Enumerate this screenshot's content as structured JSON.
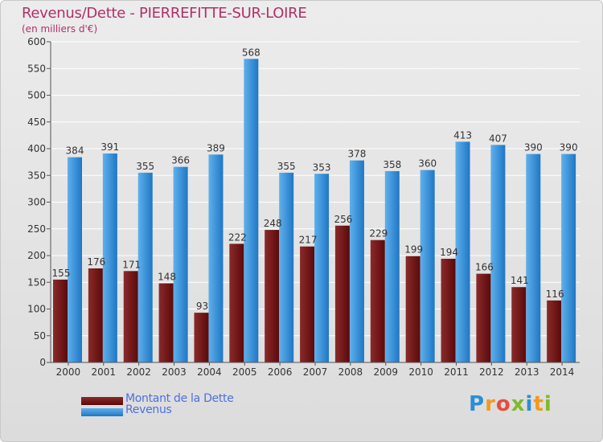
{
  "title": "Revenus/Dette - PIERREFITTE-SUR-LOIRE",
  "subtitle": "(en milliers d'€)",
  "logo": {
    "letters": [
      "P",
      "r",
      "o",
      "x",
      "i",
      "t",
      "i"
    ],
    "colors": [
      "#2a8fd6",
      "#f29a1e",
      "#e84c3d",
      "#7fba2a",
      "#2a8fd6",
      "#f29a1e",
      "#7fba2a"
    ]
  },
  "colors": {
    "debt_dark": "#5c0a0a",
    "debt_light": "#8a2a2a",
    "revenue_dark": "#1f77c4",
    "revenue_light": "#5fb0ec",
    "axis_text": "#333333",
    "grid": "#ffffff"
  },
  "chart_data": {
    "type": "bar",
    "title": "Revenus/Dette - PIERREFITTE-SUR-LOIRE",
    "ylabel": "(en milliers d'€)",
    "xlabel": "",
    "ylim": [
      0,
      600
    ],
    "yticks": [
      0,
      50,
      100,
      150,
      200,
      250,
      300,
      350,
      400,
      450,
      500,
      550,
      600
    ],
    "categories": [
      "2000",
      "2001",
      "2002",
      "2003",
      "2004",
      "2005",
      "2006",
      "2007",
      "2008",
      "2009",
      "2010",
      "2011",
      "2012",
      "2013",
      "2014"
    ],
    "series": [
      {
        "name": "Montant de la Dette",
        "values": [
          155,
          176,
          171,
          148,
          93,
          222,
          248,
          217,
          256,
          229,
          199,
          194,
          166,
          141,
          116
        ]
      },
      {
        "name": "Revenus",
        "values": [
          384,
          391,
          355,
          366,
          389,
          568,
          355,
          353,
          378,
          358,
          360,
          413,
          407,
          390,
          390
        ]
      }
    ],
    "legend_position": "bottom-left",
    "grid": true
  }
}
